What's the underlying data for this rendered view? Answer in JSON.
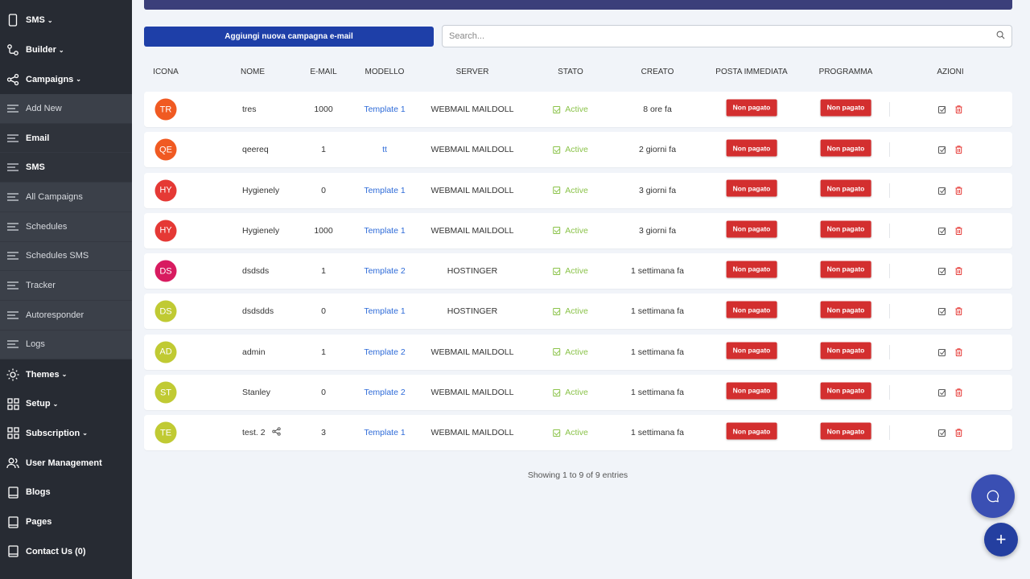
{
  "sidebar": {
    "items": [
      {
        "label": "SMS",
        "caret": "⌄",
        "icon": "phone-icon",
        "type": "top"
      },
      {
        "label": "Builder",
        "caret": "⌄",
        "icon": "builder-icon",
        "type": "top"
      },
      {
        "label": "Campaigns",
        "caret": "⌄",
        "icon": "share-icon",
        "type": "top"
      },
      {
        "label": "Add New",
        "caret": "",
        "icon": "list-icon",
        "type": "sub"
      },
      {
        "label": "Email",
        "caret": "",
        "icon": "list-icon",
        "type": "sub-strong"
      },
      {
        "label": "SMS",
        "caret": "",
        "icon": "list-icon",
        "type": "sub-strong"
      },
      {
        "label": "All Campaigns",
        "caret": "",
        "icon": "list-icon",
        "type": "sub"
      },
      {
        "label": "Schedules",
        "caret": "",
        "icon": "list-icon",
        "type": "sub"
      },
      {
        "label": "Schedules SMS",
        "caret": "",
        "icon": "list-icon",
        "type": "sub"
      },
      {
        "label": "Tracker",
        "caret": "",
        "icon": "list-icon",
        "type": "sub"
      },
      {
        "label": "Autoresponder",
        "caret": "",
        "icon": "list-icon",
        "type": "sub"
      },
      {
        "label": "Logs",
        "caret": "",
        "icon": "list-icon",
        "type": "sub"
      },
      {
        "label": "Themes",
        "caret": "⌄",
        "icon": "sun-icon",
        "type": "top"
      },
      {
        "label": "Setup",
        "caret": "⌄",
        "icon": "grid-icon",
        "type": "top"
      },
      {
        "label": "Subscription",
        "caret": "⌄",
        "icon": "grid-icon",
        "type": "top"
      },
      {
        "label": "User Management",
        "caret": "",
        "icon": "users-icon",
        "type": "top"
      },
      {
        "label": "Blogs",
        "caret": "",
        "icon": "book-icon",
        "type": "top"
      },
      {
        "label": "Pages",
        "caret": "",
        "icon": "page-icon",
        "type": "top"
      },
      {
        "label": "Contact Us (0)",
        "caret": "",
        "icon": "book-icon",
        "type": "top"
      }
    ]
  },
  "toolbar": {
    "add_label": "Aggiungi nuova campagna e-mail",
    "search_placeholder": "Search..."
  },
  "table": {
    "headers": [
      "ICONA",
      "NOME",
      "E-MAIL",
      "MODELLO",
      "SERVER",
      "STATO",
      "CREATO",
      "POSTA IMMEDIATA",
      "PROGRAMMA",
      "AZIONI"
    ],
    "rows": [
      {
        "initials": "TR",
        "color": "#f05a22",
        "name": "tres",
        "emails": "1000",
        "template": "Template 1",
        "server": "WEBMAIL MAILDOLL",
        "status": "Active",
        "created": "8 ore fa",
        "immediate": "Non pagato",
        "schedule": "Non pagato",
        "share": false
      },
      {
        "initials": "QE",
        "color": "#f05a22",
        "name": "qeereq",
        "emails": "1",
        "template": "tt",
        "server": "WEBMAIL MAILDOLL",
        "status": "Active",
        "created": "2 giorni fa",
        "immediate": "Non pagato",
        "schedule": "Non pagato",
        "share": false
      },
      {
        "initials": "HY",
        "color": "#e53935",
        "name": "Hygienely",
        "emails": "0",
        "template": "Template 1",
        "server": "WEBMAIL MAILDOLL",
        "status": "Active",
        "created": "3 giorni fa",
        "immediate": "Non pagato",
        "schedule": "Non pagato",
        "share": false
      },
      {
        "initials": "HY",
        "color": "#e53935",
        "name": "Hygienely",
        "emails": "1000",
        "template": "Template 1",
        "server": "WEBMAIL MAILDOLL",
        "status": "Active",
        "created": "3 giorni fa",
        "immediate": "Non pagato",
        "schedule": "Non pagato",
        "share": false
      },
      {
        "initials": "DS",
        "color": "#d81b60",
        "name": "dsdsds",
        "emails": "1",
        "template": "Template 2",
        "server": "HOSTINGER",
        "status": "Active",
        "created": "1 settimana fa",
        "immediate": "Non pagato",
        "schedule": "Non pagato",
        "share": false
      },
      {
        "initials": "DS",
        "color": "#c0ca33",
        "name": "dsdsdds",
        "emails": "0",
        "template": "Template 1",
        "server": "HOSTINGER",
        "status": "Active",
        "created": "1 settimana fa",
        "immediate": "Non pagato",
        "schedule": "Non pagato",
        "share": false
      },
      {
        "initials": "AD",
        "color": "#c0ca33",
        "name": "admin",
        "emails": "1",
        "template": "Template 2",
        "server": "WEBMAIL MAILDOLL",
        "status": "Active",
        "created": "1 settimana fa",
        "immediate": "Non pagato",
        "schedule": "Non pagato",
        "share": false
      },
      {
        "initials": "ST",
        "color": "#c0ca33",
        "name": "Stanley",
        "emails": "0",
        "template": "Template 2",
        "server": "WEBMAIL MAILDOLL",
        "status": "Active",
        "created": "1 settimana fa",
        "immediate": "Non pagato",
        "schedule": "Non pagato",
        "share": false
      },
      {
        "initials": "TE",
        "color": "#c0ca33",
        "name": "test. 2",
        "emails": "3",
        "template": "Template 1",
        "server": "WEBMAIL MAILDOLL",
        "status": "Active",
        "created": "1 settimana fa",
        "immediate": "Non pagato",
        "schedule": "Non pagato",
        "share": true
      }
    ],
    "footer": "Showing 1 to 9 of 9 entries"
  },
  "colors": {
    "primary": "#1e3fa8",
    "danger": "#d32f2f",
    "success": "#8bc34a",
    "sidebar": "#272b33"
  }
}
